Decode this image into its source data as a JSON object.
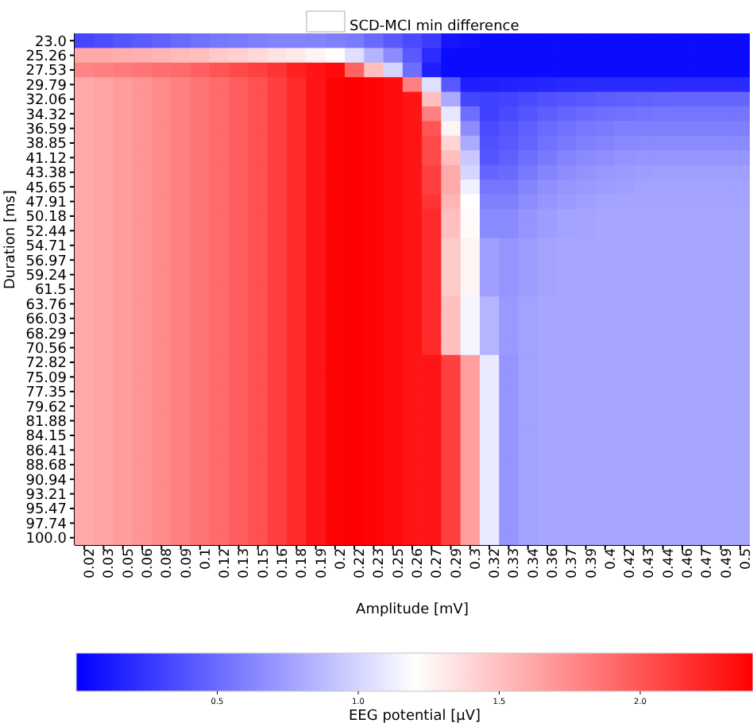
{
  "chart_data": {
    "type": "heatmap",
    "title": "SCD-MCI min difference",
    "xlabel": "Amplitude [mV]",
    "ylabel": "Duration [ms]",
    "clabel": "EEG potential [μV]",
    "clim": [
      0,
      2.4
    ],
    "cticks": [
      0.5,
      {
        "value": 1,
        "label": "1.0"
      },
      1.5,
      {
        "value": 2,
        "label": "2.0"
      }
    ],
    "categories": [
      "0.02",
      "0.03",
      "0.05",
      "0.06",
      "0.08",
      "0.09",
      "0.1",
      "0.12",
      "0.13",
      "0.15",
      "0.16",
      "0.18",
      "0.19",
      "0.2",
      "0.22",
      "0.23",
      "0.25",
      "0.26",
      "0.27",
      "0.29",
      "0.3",
      "0.32",
      "0.33",
      "0.34",
      "0.36",
      "0.37",
      "0.39",
      "0.4",
      "0.42",
      "0.43",
      "0.44",
      "0.46",
      "0.47",
      "0.49",
      "0.5"
    ],
    "y_categories": [
      "23.0",
      "25.26",
      "27.53",
      "29.79",
      "32.06",
      "34.32",
      "36.59",
      "38.85",
      "41.12",
      "43.38",
      "45.65",
      "47.91",
      "50.18",
      "52.44",
      "54.71",
      "56.97",
      "59.24",
      "61.5",
      "63.76",
      "66.03",
      "68.29",
      "70.56",
      "72.82",
      "75.09",
      "77.35",
      "79.62",
      "81.88",
      "84.15",
      "86.41",
      "88.68",
      "90.94",
      "93.21",
      "95.47",
      "97.74",
      "100.0"
    ],
    "cells": [
      [
        0.33,
        0.36,
        0.4,
        0.43,
        0.46,
        0.5,
        0.53,
        0.56,
        0.58,
        0.6,
        0.62,
        0.62,
        0.62,
        0.6,
        0.58,
        0.5,
        0.42,
        0.35,
        0.28,
        0.1,
        0.08,
        0.05,
        0.05,
        0.05,
        0.05,
        0.05,
        0.05,
        0.05,
        0.05,
        0.05,
        0.05,
        0.05,
        0.05,
        0.05,
        0.05
      ],
      [
        1.6,
        1.6,
        1.58,
        1.57,
        1.55,
        1.52,
        1.5,
        1.45,
        1.42,
        1.38,
        1.33,
        1.3,
        1.25,
        1.2,
        1.05,
        0.85,
        0.66,
        0.42,
        0.2,
        0.05,
        0.05,
        0.05,
        0.05,
        0.05,
        0.05,
        0.05,
        0.05,
        0.05,
        0.05,
        0.05,
        0.05,
        0.05,
        0.05,
        0.05,
        0.05
      ],
      [
        1.78,
        1.8,
        1.82,
        1.85,
        1.88,
        1.9,
        1.95,
        2,
        2.05,
        2.1,
        2.15,
        2.25,
        2.3,
        2.35,
        1.93,
        1.5,
        1,
        0.52,
        0.15,
        0.05,
        0.05,
        0.05,
        0.05,
        0.05,
        0.05,
        0.05,
        0.05,
        0.05,
        0.05,
        0.05,
        0.05,
        0.05,
        0.05,
        0.05,
        0.05
      ],
      [
        1.6,
        1.63,
        1.66,
        1.7,
        1.75,
        1.8,
        1.85,
        1.9,
        1.96,
        2.02,
        2.1,
        2.2,
        2.3,
        2.38,
        2.4,
        2.38,
        2.35,
        1.8,
        1.05,
        0.42,
        0.14,
        0.15,
        0.16,
        0.17,
        0.18,
        0.19,
        0.2,
        0.2,
        0.2,
        0.2,
        0.2,
        0.2,
        0.2,
        0.2,
        0.2
      ],
      [
        1.6,
        1.63,
        1.66,
        1.7,
        1.75,
        1.8,
        1.85,
        1.9,
        1.96,
        2.02,
        2.1,
        2.2,
        2.3,
        2.38,
        2.4,
        2.38,
        2.35,
        2.3,
        1.5,
        0.8,
        0.33,
        0.3,
        0.32,
        0.35,
        0.38,
        0.4,
        0.42,
        0.44,
        0.45,
        0.46,
        0.47,
        0.48,
        0.48,
        0.48,
        0.48
      ],
      [
        1.6,
        1.63,
        1.66,
        1.7,
        1.75,
        1.8,
        1.85,
        1.9,
        1.96,
        2.02,
        2.1,
        2.2,
        2.3,
        2.38,
        2.4,
        2.38,
        2.35,
        2.3,
        1.8,
        1.08,
        0.52,
        0.3,
        0.35,
        0.4,
        0.44,
        0.47,
        0.5,
        0.52,
        0.53,
        0.54,
        0.55,
        0.55,
        0.55,
        0.55,
        0.55
      ],
      [
        1.6,
        1.63,
        1.66,
        1.7,
        1.75,
        1.8,
        1.85,
        1.9,
        1.96,
        2.02,
        2.1,
        2.2,
        2.3,
        2.38,
        2.4,
        2.38,
        2.35,
        2.3,
        2,
        1.25,
        0.66,
        0.35,
        0.4,
        0.45,
        0.5,
        0.53,
        0.56,
        0.58,
        0.6,
        0.6,
        0.6,
        0.6,
        0.6,
        0.6,
        0.6
      ],
      [
        1.6,
        1.63,
        1.66,
        1.7,
        1.75,
        1.8,
        1.85,
        1.9,
        1.96,
        2.02,
        2.1,
        2.2,
        2.3,
        2.38,
        2.4,
        2.38,
        2.35,
        2.3,
        2.05,
        1.4,
        0.8,
        0.38,
        0.42,
        0.48,
        0.53,
        0.57,
        0.6,
        0.62,
        0.64,
        0.65,
        0.65,
        0.65,
        0.65,
        0.65,
        0.65
      ],
      [
        1.6,
        1.63,
        1.66,
        1.7,
        1.75,
        1.8,
        1.85,
        1.9,
        1.96,
        2.02,
        2.1,
        2.2,
        2.3,
        2.38,
        2.4,
        2.38,
        2.35,
        2.3,
        2.05,
        1.5,
        0.94,
        0.4,
        0.45,
        0.52,
        0.57,
        0.62,
        0.65,
        0.67,
        0.69,
        0.7,
        0.7,
        0.7,
        0.7,
        0.7,
        0.7
      ],
      [
        1.6,
        1.63,
        1.66,
        1.7,
        1.75,
        1.8,
        1.85,
        1.9,
        1.96,
        2.02,
        2.1,
        2.2,
        2.3,
        2.38,
        2.4,
        2.38,
        2.35,
        2.3,
        2.1,
        1.6,
        1,
        0.47,
        0.5,
        0.57,
        0.62,
        0.66,
        0.69,
        0.71,
        0.73,
        0.74,
        0.75,
        0.75,
        0.75,
        0.75,
        0.75
      ],
      [
        1.6,
        1.63,
        1.66,
        1.7,
        1.75,
        1.8,
        1.85,
        1.9,
        1.96,
        2.02,
        2.1,
        2.2,
        2.3,
        2.38,
        2.4,
        2.38,
        2.35,
        2.3,
        2.1,
        1.6,
        1.13,
        0.55,
        0.55,
        0.62,
        0.67,
        0.7,
        0.72,
        0.74,
        0.75,
        0.76,
        0.76,
        0.76,
        0.76,
        0.76,
        0.76
      ],
      [
        1.6,
        1.63,
        1.66,
        1.7,
        1.75,
        1.8,
        1.85,
        1.9,
        1.96,
        2.02,
        2.1,
        2.2,
        2.3,
        2.38,
        2.4,
        2.38,
        2.35,
        2.3,
        2.15,
        1.55,
        1.2,
        0.6,
        0.6,
        0.66,
        0.7,
        0.73,
        0.75,
        0.76,
        0.77,
        0.77,
        0.77,
        0.77,
        0.77,
        0.77,
        0.77
      ],
      [
        1.6,
        1.63,
        1.66,
        1.7,
        1.75,
        1.8,
        1.85,
        1.9,
        1.96,
        2.02,
        2.1,
        2.2,
        2.3,
        2.38,
        2.4,
        2.38,
        2.35,
        2.3,
        2.2,
        1.5,
        1.22,
        0.65,
        0.65,
        0.7,
        0.74,
        0.76,
        0.77,
        0.78,
        0.78,
        0.78,
        0.78,
        0.78,
        0.78,
        0.78,
        0.78
      ],
      [
        1.6,
        1.63,
        1.66,
        1.7,
        1.75,
        1.8,
        1.85,
        1.9,
        1.96,
        2.02,
        2.1,
        2.2,
        2.3,
        2.38,
        2.4,
        2.38,
        2.35,
        2.3,
        2.2,
        1.5,
        1.22,
        0.65,
        0.65,
        0.7,
        0.74,
        0.76,
        0.77,
        0.78,
        0.78,
        0.78,
        0.78,
        0.78,
        0.78,
        0.78,
        0.78
      ],
      [
        1.6,
        1.63,
        1.66,
        1.7,
        1.75,
        1.8,
        1.85,
        1.9,
        1.96,
        2.02,
        2.1,
        2.2,
        2.3,
        2.38,
        2.4,
        2.38,
        2.35,
        2.3,
        2.2,
        1.45,
        1.25,
        0.75,
        0.7,
        0.74,
        0.77,
        0.78,
        0.78,
        0.78,
        0.78,
        0.78,
        0.78,
        0.78,
        0.78,
        0.78,
        0.78
      ],
      [
        1.6,
        1.63,
        1.66,
        1.7,
        1.75,
        1.8,
        1.85,
        1.9,
        1.96,
        2.02,
        2.1,
        2.2,
        2.3,
        2.38,
        2.4,
        2.38,
        2.35,
        2.3,
        2.2,
        1.45,
        1.25,
        0.75,
        0.7,
        0.74,
        0.77,
        0.78,
        0.78,
        0.78,
        0.78,
        0.78,
        0.78,
        0.78,
        0.78,
        0.78,
        0.78
      ],
      [
        1.6,
        1.63,
        1.66,
        1.7,
        1.75,
        1.8,
        1.85,
        1.9,
        1.96,
        2.02,
        2.1,
        2.2,
        2.3,
        2.38,
        2.4,
        2.38,
        2.35,
        2.3,
        2.2,
        1.45,
        1.25,
        0.75,
        0.7,
        0.74,
        0.77,
        0.78,
        0.78,
        0.78,
        0.78,
        0.78,
        0.78,
        0.78,
        0.78,
        0.78,
        0.78
      ],
      [
        1.6,
        1.63,
        1.66,
        1.7,
        1.75,
        1.8,
        1.85,
        1.9,
        1.96,
        2.02,
        2.1,
        2.2,
        2.3,
        2.38,
        2.4,
        2.38,
        2.35,
        2.3,
        2.2,
        1.45,
        1.25,
        0.75,
        0.7,
        0.74,
        0.77,
        0.78,
        0.78,
        0.78,
        0.78,
        0.78,
        0.78,
        0.78,
        0.78,
        0.78,
        0.78
      ],
      [
        1.6,
        1.63,
        1.66,
        1.7,
        1.75,
        1.8,
        1.85,
        1.9,
        1.96,
        2.02,
        2.1,
        2.2,
        2.3,
        2.38,
        2.4,
        2.38,
        2.35,
        2.3,
        2.2,
        1.5,
        1.15,
        0.85,
        0.72,
        0.76,
        0.78,
        0.78,
        0.78,
        0.78,
        0.78,
        0.78,
        0.78,
        0.78,
        0.78,
        0.78,
        0.78
      ],
      [
        1.6,
        1.63,
        1.66,
        1.7,
        1.75,
        1.8,
        1.85,
        1.9,
        1.96,
        2.02,
        2.1,
        2.2,
        2.3,
        2.38,
        2.4,
        2.38,
        2.35,
        2.3,
        2.2,
        1.5,
        1.15,
        0.85,
        0.72,
        0.76,
        0.78,
        0.78,
        0.78,
        0.78,
        0.78,
        0.78,
        0.78,
        0.78,
        0.78,
        0.78,
        0.78
      ],
      [
        1.6,
        1.63,
        1.66,
        1.7,
        1.75,
        1.8,
        1.85,
        1.9,
        1.96,
        2.02,
        2.1,
        2.2,
        2.3,
        2.38,
        2.4,
        2.38,
        2.35,
        2.3,
        2.2,
        1.5,
        1.15,
        0.85,
        0.72,
        0.76,
        0.78,
        0.78,
        0.78,
        0.78,
        0.78,
        0.78,
        0.78,
        0.78,
        0.78,
        0.78,
        0.78
      ],
      [
        1.6,
        1.63,
        1.66,
        1.7,
        1.75,
        1.8,
        1.85,
        1.9,
        1.96,
        2.02,
        2.1,
        2.2,
        2.3,
        2.38,
        2.4,
        2.38,
        2.35,
        2.3,
        2.2,
        1.5,
        1.15,
        0.85,
        0.72,
        0.76,
        0.78,
        0.78,
        0.78,
        0.78,
        0.78,
        0.78,
        0.78,
        0.78,
        0.78,
        0.78,
        0.78
      ],
      [
        1.6,
        1.63,
        1.66,
        1.7,
        1.75,
        1.8,
        1.85,
        1.9,
        1.96,
        2.02,
        2.1,
        2.2,
        2.3,
        2.38,
        2.4,
        2.38,
        2.35,
        2.3,
        2.3,
        2.1,
        1.65,
        1.1,
        0.7,
        0.76,
        0.78,
        0.78,
        0.78,
        0.78,
        0.78,
        0.78,
        0.78,
        0.78,
        0.78,
        0.78,
        0.78
      ],
      [
        1.6,
        1.63,
        1.66,
        1.7,
        1.75,
        1.8,
        1.85,
        1.9,
        1.96,
        2.02,
        2.1,
        2.2,
        2.3,
        2.38,
        2.4,
        2.38,
        2.35,
        2.3,
        2.3,
        2.1,
        1.65,
        1.1,
        0.7,
        0.76,
        0.78,
        0.78,
        0.78,
        0.78,
        0.78,
        0.78,
        0.78,
        0.78,
        0.78,
        0.78,
        0.78
      ],
      [
        1.6,
        1.63,
        1.66,
        1.7,
        1.75,
        1.8,
        1.85,
        1.9,
        1.96,
        2.02,
        2.1,
        2.2,
        2.3,
        2.38,
        2.4,
        2.38,
        2.35,
        2.3,
        2.3,
        2.1,
        1.65,
        1.1,
        0.7,
        0.76,
        0.78,
        0.78,
        0.78,
        0.78,
        0.78,
        0.78,
        0.78,
        0.78,
        0.78,
        0.78,
        0.78
      ],
      [
        1.6,
        1.63,
        1.66,
        1.7,
        1.75,
        1.8,
        1.85,
        1.9,
        1.96,
        2.02,
        2.1,
        2.2,
        2.3,
        2.38,
        2.4,
        2.38,
        2.35,
        2.3,
        2.3,
        2.1,
        1.65,
        1.1,
        0.7,
        0.76,
        0.78,
        0.78,
        0.78,
        0.78,
        0.78,
        0.78,
        0.78,
        0.78,
        0.78,
        0.78,
        0.78
      ],
      [
        1.6,
        1.63,
        1.66,
        1.7,
        1.75,
        1.8,
        1.85,
        1.9,
        1.96,
        2.02,
        2.1,
        2.2,
        2.3,
        2.38,
        2.4,
        2.38,
        2.35,
        2.3,
        2.3,
        2.1,
        1.65,
        1.1,
        0.7,
        0.76,
        0.78,
        0.78,
        0.78,
        0.78,
        0.78,
        0.78,
        0.78,
        0.78,
        0.78,
        0.78,
        0.78
      ],
      [
        1.6,
        1.63,
        1.66,
        1.7,
        1.75,
        1.8,
        1.85,
        1.9,
        1.96,
        2.02,
        2.1,
        2.2,
        2.3,
        2.38,
        2.4,
        2.38,
        2.35,
        2.3,
        2.3,
        2.1,
        1.65,
        1.1,
        0.7,
        0.76,
        0.78,
        0.78,
        0.78,
        0.78,
        0.78,
        0.78,
        0.78,
        0.78,
        0.78,
        0.78,
        0.78
      ],
      [
        1.6,
        1.63,
        1.66,
        1.7,
        1.75,
        1.8,
        1.85,
        1.9,
        1.96,
        2.02,
        2.1,
        2.2,
        2.3,
        2.38,
        2.4,
        2.38,
        2.35,
        2.3,
        2.3,
        2.1,
        1.65,
        1.1,
        0.7,
        0.76,
        0.78,
        0.78,
        0.78,
        0.78,
        0.78,
        0.78,
        0.78,
        0.78,
        0.78,
        0.78,
        0.78
      ],
      [
        1.6,
        1.63,
        1.66,
        1.7,
        1.75,
        1.8,
        1.85,
        1.9,
        1.96,
        2.02,
        2.1,
        2.2,
        2.3,
        2.38,
        2.4,
        2.38,
        2.35,
        2.3,
        2.3,
        2.1,
        1.65,
        1.1,
        0.7,
        0.76,
        0.78,
        0.78,
        0.78,
        0.78,
        0.78,
        0.78,
        0.78,
        0.78,
        0.78,
        0.78,
        0.78
      ],
      [
        1.6,
        1.63,
        1.66,
        1.7,
        1.75,
        1.8,
        1.85,
        1.9,
        1.96,
        2.02,
        2.1,
        2.2,
        2.3,
        2.38,
        2.4,
        2.38,
        2.35,
        2.3,
        2.3,
        2.1,
        1.65,
        1.1,
        0.7,
        0.76,
        0.78,
        0.78,
        0.78,
        0.78,
        0.78,
        0.78,
        0.78,
        0.78,
        0.78,
        0.78,
        0.78
      ],
      [
        1.6,
        1.63,
        1.66,
        1.7,
        1.75,
        1.8,
        1.85,
        1.9,
        1.96,
        2.02,
        2.1,
        2.2,
        2.3,
        2.38,
        2.4,
        2.38,
        2.35,
        2.3,
        2.3,
        2.1,
        1.65,
        1.1,
        0.7,
        0.76,
        0.78,
        0.78,
        0.78,
        0.78,
        0.78,
        0.78,
        0.78,
        0.78,
        0.78,
        0.78,
        0.78
      ],
      [
        1.6,
        1.63,
        1.66,
        1.7,
        1.75,
        1.8,
        1.85,
        1.9,
        1.96,
        2.02,
        2.1,
        2.2,
        2.3,
        2.38,
        2.4,
        2.38,
        2.35,
        2.3,
        2.3,
        2.1,
        1.65,
        1.1,
        0.7,
        0.76,
        0.78,
        0.78,
        0.78,
        0.78,
        0.78,
        0.78,
        0.78,
        0.78,
        0.78,
        0.78,
        0.78
      ],
      [
        1.6,
        1.63,
        1.66,
        1.7,
        1.75,
        1.8,
        1.85,
        1.9,
        1.96,
        2.02,
        2.1,
        2.2,
        2.3,
        2.38,
        2.4,
        2.38,
        2.35,
        2.3,
        2.3,
        2.1,
        1.65,
        1.1,
        0.7,
        0.76,
        0.78,
        0.78,
        0.78,
        0.78,
        0.78,
        0.78,
        0.78,
        0.78,
        0.78,
        0.78,
        0.78
      ],
      [
        1.6,
        1.63,
        1.66,
        1.7,
        1.75,
        1.8,
        1.85,
        1.9,
        1.96,
        2.02,
        2.1,
        2.2,
        2.3,
        2.38,
        2.4,
        2.38,
        2.35,
        2.3,
        2.3,
        2.1,
        1.65,
        1.1,
        0.7,
        0.76,
        0.78,
        0.78,
        0.78,
        0.78,
        0.78,
        0.78,
        0.78,
        0.78,
        0.78,
        0.78,
        0.78
      ]
    ]
  }
}
